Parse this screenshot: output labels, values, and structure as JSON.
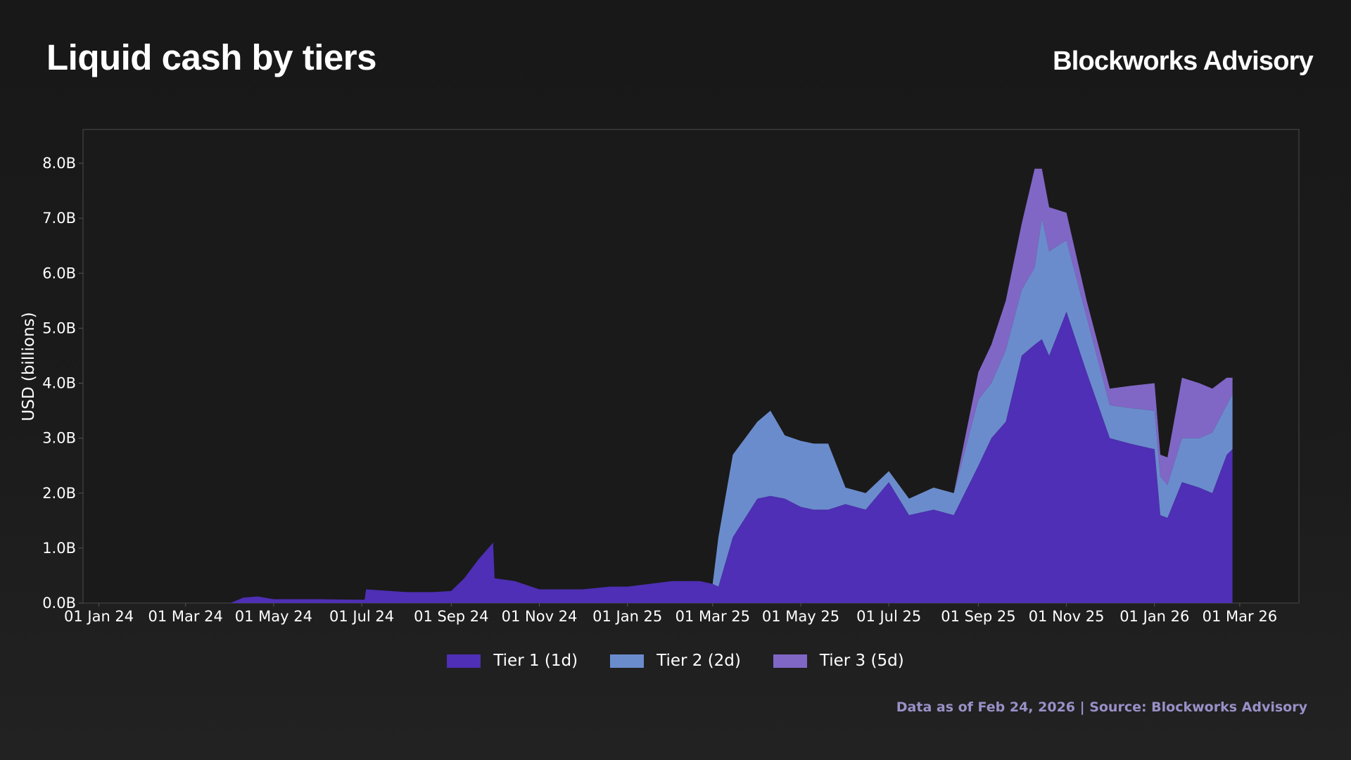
{
  "header": {
    "title": "Liquid cash by tiers",
    "brand": "Blockworks Advisory"
  },
  "footer": {
    "note": "Data as of Feb 24, 2026 | Source: Blockworks Advisory"
  },
  "colors": {
    "background": "#1b1b1b",
    "plot_background": "#1a1a1a",
    "tier1": "#4e2fb5",
    "tier2": "#6b8ccc",
    "tier3": "#8067c6",
    "footer_text": "#9a90c8"
  },
  "chart_data": {
    "type": "area",
    "stacked": true,
    "title": "Liquid cash by tiers",
    "ylabel": "USD (billions)",
    "xlabel": "",
    "ylim": [
      0,
      8.6
    ],
    "y_ticks": [
      "0.0B",
      "1.0B",
      "2.0B",
      "3.0B",
      "4.0B",
      "5.0B",
      "6.0B",
      "7.0B",
      "8.0B"
    ],
    "x_ticks": [
      "01 Jan 24",
      "01 Mar 24",
      "01 May 24",
      "01 Jul 24",
      "01 Sep 24",
      "01 Nov 24",
      "01 Jan 25",
      "01 Mar 25",
      "01 May 25",
      "01 Jul 25",
      "01 Sep 25",
      "01 Nov 25",
      "01 Jan 26",
      "01 Mar 26"
    ],
    "xlim": [
      "2023-12-21",
      "2026-04-11"
    ],
    "legend_position": "bottom-center",
    "grid": false,
    "x": [
      "2024-01-01",
      "2024-04-01",
      "2024-04-10",
      "2024-04-20",
      "2024-05-01",
      "2024-06-01",
      "2024-07-03",
      "2024-07-04",
      "2024-08-01",
      "2024-08-20",
      "2024-09-01",
      "2024-09-10",
      "2024-09-20",
      "2024-09-30",
      "2024-10-01",
      "2024-10-15",
      "2024-11-01",
      "2024-12-01",
      "2024-12-20",
      "2025-01-01",
      "2025-02-01",
      "2025-02-20",
      "2025-03-01",
      "2025-03-05",
      "2025-03-15",
      "2025-04-01",
      "2025-04-10",
      "2025-04-20",
      "2025-05-01",
      "2025-05-10",
      "2025-05-20",
      "2025-06-01",
      "2025-06-15",
      "2025-07-01",
      "2025-07-15",
      "2025-08-01",
      "2025-08-15",
      "2025-09-01",
      "2025-09-10",
      "2025-09-20",
      "2025-10-01",
      "2025-10-10",
      "2025-10-15",
      "2025-10-20",
      "2025-11-01",
      "2025-11-15",
      "2025-12-01",
      "2025-12-15",
      "2026-01-01",
      "2026-01-05",
      "2026-01-10",
      "2026-01-20",
      "2026-02-01",
      "2026-02-10",
      "2026-02-20",
      "2026-02-24"
    ],
    "series": [
      {
        "name": "Tier 1 (1d)",
        "color": "#4e2fb5",
        "values": [
          0,
          0,
          0.1,
          0.12,
          0.07,
          0.07,
          0.06,
          0.25,
          0.2,
          0.2,
          0.22,
          0.45,
          0.8,
          1.1,
          0.45,
          0.4,
          0.25,
          0.25,
          0.3,
          0.3,
          0.4,
          0.4,
          0.35,
          0.3,
          1.2,
          1.9,
          1.95,
          1.9,
          1.75,
          1.7,
          1.7,
          1.8,
          1.7,
          2.2,
          1.6,
          1.7,
          1.6,
          2.5,
          3.0,
          3.3,
          4.5,
          4.7,
          4.8,
          4.5,
          5.3,
          4.2,
          3.0,
          2.9,
          2.8,
          1.6,
          1.55,
          2.2,
          2.1,
          2.0,
          2.7,
          2.8
        ]
      },
      {
        "name": "Tier 2 (2d)",
        "color": "#6b8ccc",
        "values": [
          0,
          0,
          0,
          0,
          0,
          0,
          0,
          0,
          0,
          0,
          0,
          0,
          0,
          0,
          0,
          0,
          0,
          0,
          0,
          0,
          0,
          0,
          0,
          0.9,
          1.5,
          1.4,
          1.55,
          1.15,
          1.2,
          1.2,
          1.2,
          0.3,
          0.3,
          0.2,
          0.3,
          0.4,
          0.4,
          1.2,
          1.0,
          1.3,
          1.2,
          1.4,
          2.2,
          1.9,
          1.3,
          1.0,
          0.6,
          0.65,
          0.7,
          0.7,
          0.6,
          0.8,
          0.9,
          1.1,
          0.9,
          1.0
        ]
      },
      {
        "name": "Tier 3 (5d)",
        "color": "#8067c6",
        "values": [
          0,
          0,
          0,
          0,
          0,
          0,
          0,
          0,
          0,
          0,
          0,
          0,
          0,
          0,
          0,
          0,
          0,
          0,
          0,
          0,
          0,
          0,
          0,
          0,
          0,
          0,
          0,
          0,
          0,
          0,
          0,
          0,
          0,
          0,
          0,
          0,
          0,
          0.5,
          0.7,
          0.9,
          1.2,
          1.8,
          0.9,
          0.8,
          0.5,
          0.3,
          0.3,
          0.4,
          0.5,
          0.4,
          0.5,
          1.1,
          1.0,
          0.8,
          0.5,
          0.3
        ]
      }
    ]
  }
}
